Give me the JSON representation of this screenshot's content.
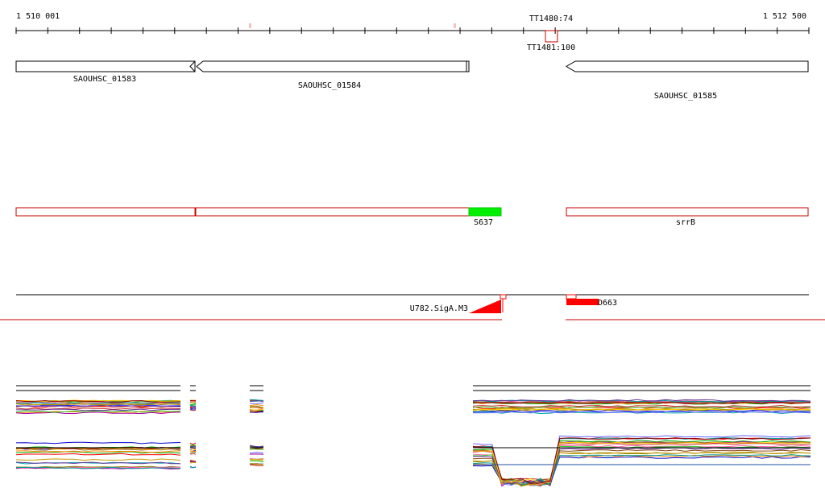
{
  "ruler": {
    "start_label": "1 510 001",
    "end_label": "1 512 500",
    "start_coord": 1510001,
    "end_coord": 1512500,
    "tick_count": 26
  },
  "terminators": [
    {
      "label": "TT1480:74",
      "label_pos": "above"
    },
    {
      "label": "TT1481:100",
      "label_pos": "below"
    }
  ],
  "genes": [
    {
      "name": "SAOUHSC_01583",
      "start": 1510001,
      "end": 1510570,
      "strand": "-"
    },
    {
      "name": "SAOUHSC_01584",
      "start": 1510570,
      "end": 1511430,
      "strand": "-"
    },
    {
      "name": "SAOUHSC_01585",
      "start": 1511730,
      "end": 1512500,
      "strand": "-"
    }
  ],
  "annotations": [
    {
      "name": "",
      "start": 1510001,
      "end": 1510570,
      "type": "outline"
    },
    {
      "name": "",
      "start": 1510570,
      "end": 1511430,
      "type": "outline"
    },
    {
      "name": "S637",
      "start": 1511430,
      "end": 1511530,
      "type": "green"
    },
    {
      "name": "srrB",
      "start": 1511730,
      "end": 1512500,
      "type": "outline"
    }
  ],
  "features": [
    {
      "name": "U782.SigA.M3",
      "shape": "wedge"
    },
    {
      "name": "D663",
      "shape": "bar"
    }
  ],
  "colors": {
    "outline_red": "#cc0000",
    "feature_red": "#ff0000",
    "green": "#00ee00",
    "axis": "#000000"
  },
  "expression_tracks": {
    "series_colors": [
      "#8b4513",
      "#ff0000",
      "#00aa00",
      "#0000cc",
      "#ff8800",
      "#aa00aa",
      "#00aaaa",
      "#888800",
      "#ff66aa",
      "#6666ff",
      "#33cc33",
      "#cc3333",
      "#996633",
      "#009999",
      "#cc9900",
      "#663399",
      "#ffcc00",
      "#990000"
    ]
  }
}
